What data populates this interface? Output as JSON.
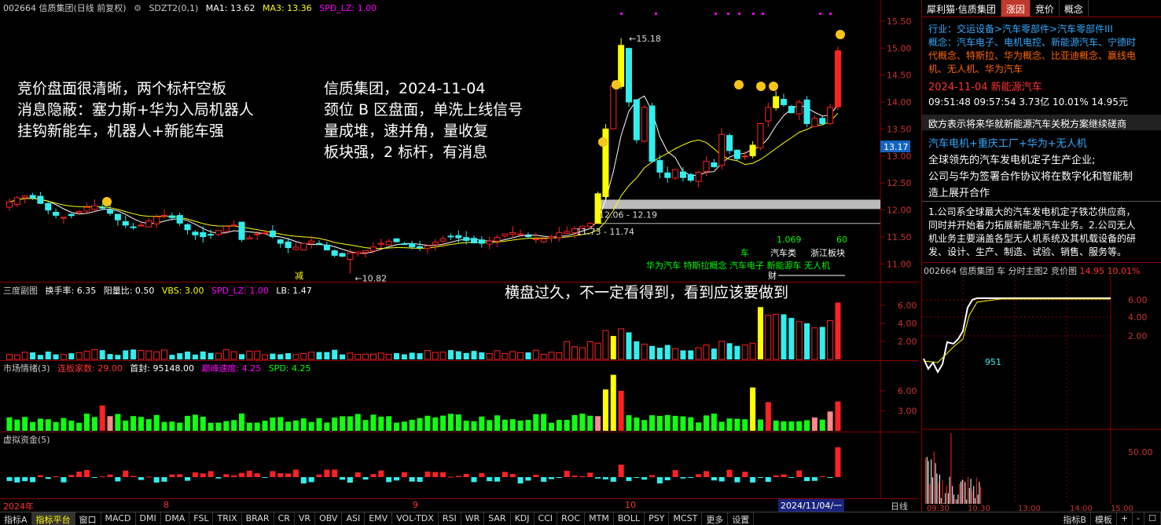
{
  "main_header": {
    "code_name": "002664 信质集团(日线 前复权)",
    "indicator": "SDZT2(0,1)",
    "ma1": "MA1: 13.62",
    "ma3": "MA3: 13.36",
    "spd": "SPD_LZ: 1.00"
  },
  "price_axis": [
    "15.50",
    "15.00",
    "14.50",
    "14.00",
    "13.50",
    "13.00",
    "12.50",
    "12.00",
    "11.50",
    "11.00"
  ],
  "price_tag": "13.17",
  "chart_labels": {
    "high": "15.18",
    "low": "10.82",
    "gap1": "12.06 - 12.19",
    "gap2": "11.73 - 11.74",
    "reduce": "减",
    "cai": "财"
  },
  "annotations": {
    "left": [
      "竞价盘面很清晰，两个标杆空板",
      "消息隐蔽：塞力斯+华为入局机器人",
      "挂钩新能车，机器人+新能车强"
    ],
    "right": [
      "信质集团，2024-11-04",
      "颈位 B 区盘面，单洗上线信号",
      "量成堆，速并角，量收复",
      "板块强，2 标杆，有消息"
    ],
    "vol": "横盘过久，不一定看得到，看到应该要做到"
  },
  "sector": {
    "che": "车",
    "qichelei": "汽车类",
    "zhejiang": "浙江板块",
    "v1": "1.069",
    "v2": "60",
    "concepts": "华为汽车 特斯拉概念 汽车电子 新能源车 无人机"
  },
  "vol_header": {
    "title": "三度副图",
    "turnover": "换手率: 6.35",
    "ratio": "阳量比: 0.50",
    "vbs": "VBS: 3.00",
    "spd": "SPD_LZ: 1.00",
    "lb": "LB: 1.47"
  },
  "vol_axis": [
    "6.00",
    "4.00",
    "2.00"
  ],
  "mood_header": {
    "title": "市场情绪(3)",
    "lianban": "连板家数: 29.00",
    "shoufeng": "首封: 95148.00",
    "speed": "巅峰速度: 4.25",
    "spd": "SPD: 4.25"
  },
  "mood_axis": [
    "6.00",
    "3.00"
  ],
  "fund_header": {
    "title": "虚拟资金(5)"
  },
  "date_axis": [
    "2024年",
    "8",
    "9",
    "10"
  ],
  "date_cursor": "2024/11/04/一",
  "right_panel": {
    "tabs": [
      "犀利猫·信质集团",
      "涨因",
      "竞价",
      "概念"
    ],
    "industry": "行业：交运设备>汽车零部件>汽车零部件III",
    "concept1": "概念：汽车电子、电机电控、新能源汽车、宁德时",
    "concept2": "代概念、特斯拉、华为概念、比亚迪概念、赢线电",
    "concept3": "机、无人机、华为汽车",
    "date_line": "2024-11-04  新能源汽车",
    "time_line": "09:51:48 09:57:54    3.73亿  10.01%  14.95元",
    "news": "欧方表示将来华就新能源汽车关税方案继续磋商",
    "theme": "汽车电机+重庆工厂+华为+无人机",
    "desc1": "全球领先的汽车发电机定子生产企业;",
    "desc2": "公司与华为签署合作协议将在数字化和智能制",
    "desc3": "造上展开合作",
    "p1": "1.公司系全球最大的汽车发电机定子铁芯供应商，",
    "p2": "同时并开始着力拓展新能源汽车业务。2.公司无人",
    "p3": "机业务主要涵盖各型无人机系统及其机载设备的研",
    "p4": "发、设计、生产、制造、试验、销售、服务等。",
    "mini_title": "002664 信质集团  车  分时主图2  竞价图",
    "mini_price": "14.95  10.01%",
    "mini_val": "951",
    "mini_axis": [
      "6.00",
      "4.00",
      "2.00"
    ],
    "mini_axis2": "50.00",
    "mini_times": [
      "09:30",
      "10:30",
      "13:00",
      "14:00",
      "15:00"
    ],
    "rixian": "日线"
  },
  "bottom_tabs": [
    "指标A",
    "指标平台",
    "窗口",
    "MACD",
    "DMI",
    "DMA",
    "FSL",
    "TRIX",
    "BRAR",
    "CR",
    "VR",
    "OBV",
    "ASI",
    "EMV",
    "VOL-TDX",
    "RSI",
    "WR",
    "SAR",
    "KDJ",
    "CCI",
    "ROC",
    "MTM",
    "BOLL",
    "PSY",
    "MCST",
    "更多",
    "设置"
  ],
  "bottom_right": [
    "指标B",
    "模板",
    "+",
    "-",
    "☐"
  ],
  "chart_data": {
    "type": "candlestick",
    "title": "002664 信质集团(日线 前复权)",
    "x_labels": [
      "2024年",
      "8",
      "9",
      "10",
      "2024/11/04"
    ],
    "ylim": [
      10.8,
      15.6
    ],
    "high": 15.18,
    "low": 10.82,
    "last_close": 14.95,
    "ma_values": {
      "MA1": 13.62,
      "MA3": 13.36
    }
  }
}
